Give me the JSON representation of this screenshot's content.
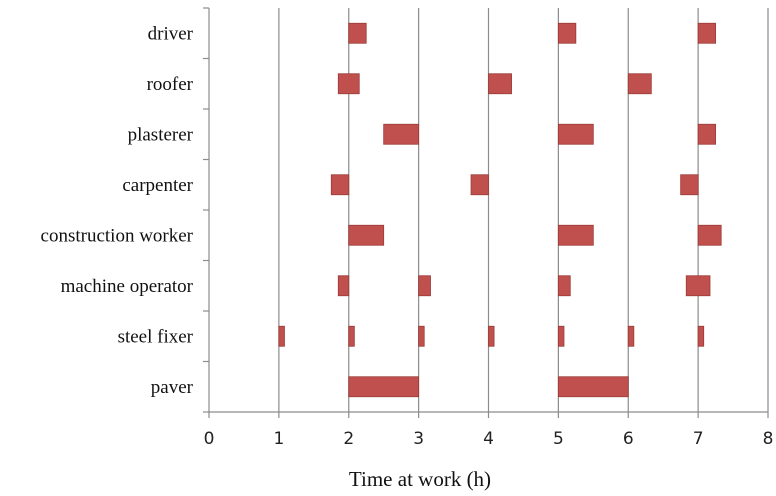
{
  "chart_data": {
    "type": "bar",
    "orientation": "horizontal",
    "chart_subtype": "timeline",
    "title": "",
    "xlabel": "Time at work (h)",
    "ylabel": "",
    "xlim": [
      0,
      8
    ],
    "x_ticks": [
      "0",
      "1",
      "2",
      "3",
      "4",
      "5",
      "6",
      "7",
      "8"
    ],
    "grid": "vertical",
    "legend": "none",
    "bar_color": "#C0504D",
    "bar_border_color": "#9B3A37",
    "categories": [
      "driver",
      "roofer",
      "plasterer",
      "carpenter",
      "construction worker",
      "machine operator",
      "steel fixer",
      "paver"
    ],
    "intervals": [
      [
        [
          2.0,
          2.25
        ],
        [
          5.0,
          5.25
        ],
        [
          7.0,
          7.25
        ]
      ],
      [
        [
          1.85,
          2.15
        ],
        [
          4.0,
          4.33
        ],
        [
          6.0,
          6.33
        ]
      ],
      [
        [
          2.5,
          3.0
        ],
        [
          5.0,
          5.5
        ],
        [
          7.0,
          7.25
        ]
      ],
      [
        [
          1.75,
          2.0
        ],
        [
          3.75,
          4.0
        ],
        [
          6.75,
          7.0
        ]
      ],
      [
        [
          2.0,
          2.5
        ],
        [
          5.0,
          5.5
        ],
        [
          7.0,
          7.33
        ]
      ],
      [
        [
          1.85,
          2.0
        ],
        [
          3.0,
          3.17
        ],
        [
          5.0,
          5.17
        ],
        [
          6.83,
          7.17
        ]
      ],
      [
        [
          1.0,
          1.08
        ],
        [
          2.0,
          2.08
        ],
        [
          3.0,
          3.08
        ],
        [
          4.0,
          4.08
        ],
        [
          5.0,
          5.08
        ],
        [
          6.0,
          6.08
        ],
        [
          7.0,
          7.08
        ]
      ],
      [
        [
          2.0,
          3.0
        ],
        [
          5.0,
          6.0
        ]
      ]
    ]
  }
}
